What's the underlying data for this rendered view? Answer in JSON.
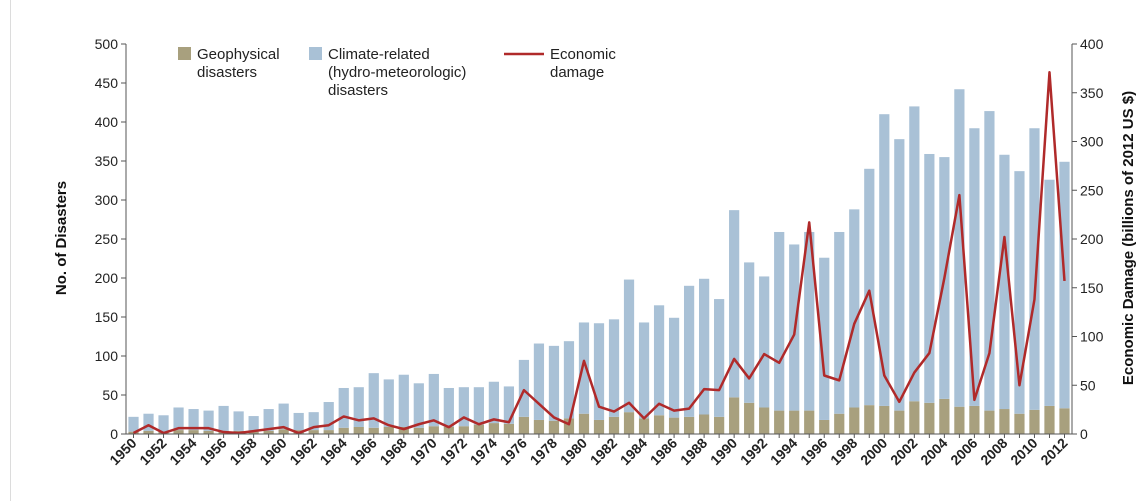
{
  "chart_data": {
    "type": "bar",
    "stacked": true,
    "secondary_line": true,
    "ylabel": "No. of Disasters",
    "y2label": "Economic Damage (billions of 2012 US $)",
    "ylim": [
      0,
      500
    ],
    "y2lim": [
      0,
      400
    ],
    "yticks": [
      0,
      50,
      100,
      150,
      200,
      250,
      300,
      350,
      400,
      450,
      500
    ],
    "y2ticks": [
      0,
      50,
      100,
      150,
      200,
      250,
      300,
      350,
      400
    ],
    "grid": false,
    "legend_position": "top",
    "x": [
      1950,
      1951,
      1952,
      1953,
      1954,
      1955,
      1956,
      1957,
      1958,
      1959,
      1960,
      1961,
      1962,
      1963,
      1964,
      1965,
      1966,
      1967,
      1968,
      1969,
      1970,
      1971,
      1972,
      1973,
      1974,
      1975,
      1976,
      1977,
      1978,
      1979,
      1980,
      1981,
      1982,
      1983,
      1984,
      1985,
      1986,
      1987,
      1988,
      1989,
      1990,
      1991,
      1992,
      1993,
      1994,
      1995,
      1996,
      1997,
      1998,
      1999,
      2000,
      2001,
      2002,
      2003,
      2004,
      2005,
      2006,
      2007,
      2008,
      2009,
      2010,
      2011,
      2012
    ],
    "xtick_labels": [
      "1950",
      "1952",
      "1954",
      "1956",
      "1958",
      "1960",
      "1962",
      "1964",
      "1966",
      "1968",
      "1970",
      "1972",
      "1974",
      "1976",
      "1978",
      "1980",
      "1982",
      "1984",
      "1986",
      "1988",
      "1990",
      "1992",
      "1994",
      "1996",
      "1998",
      "2000",
      "2002",
      "2004",
      "2006",
      "2008",
      "2010",
      "2012"
    ],
    "series": [
      {
        "name": "Geophysical disasters",
        "name_lines": [
          "Geophysical",
          "disasters"
        ],
        "color": "#a8a07e",
        "axis": "left",
        "values": [
          3,
          4,
          3,
          5,
          5,
          4,
          4,
          4,
          3,
          4,
          6,
          5,
          5,
          5,
          8,
          9,
          8,
          9,
          9,
          8,
          10,
          9,
          10,
          12,
          14,
          13,
          22,
          18,
          17,
          20,
          26,
          18,
          22,
          28,
          20,
          24,
          21,
          22,
          25,
          22,
          47,
          40,
          34,
          30,
          30,
          30,
          18,
          26,
          34,
          37,
          36,
          30,
          42,
          40,
          45,
          35,
          36,
          30,
          32,
          26,
          31,
          36,
          33
        ]
      },
      {
        "name": "Climate-related (hydro-meteorologic) disasters",
        "name_lines": [
          "Climate-related",
          "(hydro-meteorologic)",
          "disasters"
        ],
        "color": "#a9c1d6",
        "axis": "left",
        "values": [
          19,
          22,
          21,
          29,
          27,
          26,
          32,
          25,
          20,
          28,
          33,
          22,
          23,
          36,
          51,
          51,
          70,
          61,
          67,
          57,
          67,
          50,
          50,
          48,
          53,
          48,
          73,
          98,
          96,
          99,
          117,
          124,
          125,
          170,
          123,
          141,
          128,
          168,
          174,
          151,
          240,
          180,
          168,
          229,
          213,
          229,
          208,
          233,
          254,
          303,
          374,
          348,
          378,
          319,
          310,
          407,
          356,
          384,
          326,
          311,
          361,
          290,
          316
        ]
      },
      {
        "name": "Economic damage",
        "name_lines": [
          "Economic",
          "damage"
        ],
        "color": "#b02a2a",
        "axis": "right",
        "type": "line",
        "values": [
          1,
          9,
          1,
          6,
          6,
          6,
          2,
          1,
          3,
          5,
          7,
          1,
          7,
          9,
          18,
          14,
          16,
          9,
          5,
          10,
          14,
          7,
          17,
          10,
          15,
          12,
          45,
          31,
          17,
          10,
          75,
          28,
          23,
          32,
          16,
          31,
          24,
          26,
          46,
          45,
          77,
          57,
          82,
          73,
          102,
          217,
          60,
          55,
          113,
          147,
          60,
          33,
          63,
          83,
          160,
          245,
          35,
          83,
          202,
          50,
          138,
          371,
          157
        ]
      }
    ]
  }
}
